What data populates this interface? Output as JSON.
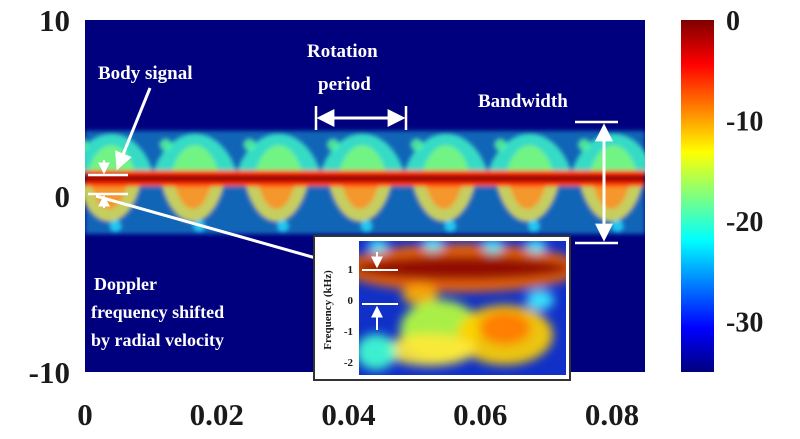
{
  "chart_data": [
    {
      "type": "heatmap",
      "title": "",
      "xlabel": "",
      "ylabel": "",
      "xlim": [
        0,
        0.085
      ],
      "ylim": [
        -10,
        10
      ],
      "x_ticks": [
        "0",
        "0.02",
        "0.04",
        "0.06",
        "0.08"
      ],
      "y_ticks": [
        "10",
        "0",
        "-10"
      ],
      "x_tick_values": [
        0,
        0.02,
        0.04,
        0.06,
        0.08
      ],
      "y_tick_values": [
        10,
        0,
        -10
      ],
      "colorbar": {
        "range": [
          -35,
          0
        ],
        "ticks": [
          "0",
          "-10",
          "-20",
          "-30"
        ],
        "tick_values": [
          0,
          -10,
          -20,
          -30
        ],
        "colormap": "jet"
      },
      "body_signal_doppler": 1,
      "rotation_period": 0.0127,
      "bandwidth": [
        -2.5,
        4.5
      ],
      "annotations": {
        "body_signal": "Body signal",
        "rotation_period": [
          "Rotation",
          "period"
        ],
        "bandwidth": "Bandwidth",
        "doppler": [
          "Doppler",
          "frequency shifted",
          "by radial velocity"
        ]
      }
    },
    {
      "type": "heatmap",
      "title": "",
      "ylabel": "Frequency (kHz)",
      "y_ticks": [
        "1",
        "0",
        "-1",
        "-2"
      ],
      "y_tick_values": [
        1,
        0,
        -1,
        -2
      ]
    }
  ],
  "colors": {
    "background": "#00007f",
    "jet": [
      "#00007f",
      "#0000ff",
      "#007fff",
      "#00ffff",
      "#7fff7f",
      "#ffff00",
      "#ff7f00",
      "#ff0000",
      "#7f0000"
    ],
    "annotation": "#ffffff",
    "text": "#1a1a1a"
  }
}
